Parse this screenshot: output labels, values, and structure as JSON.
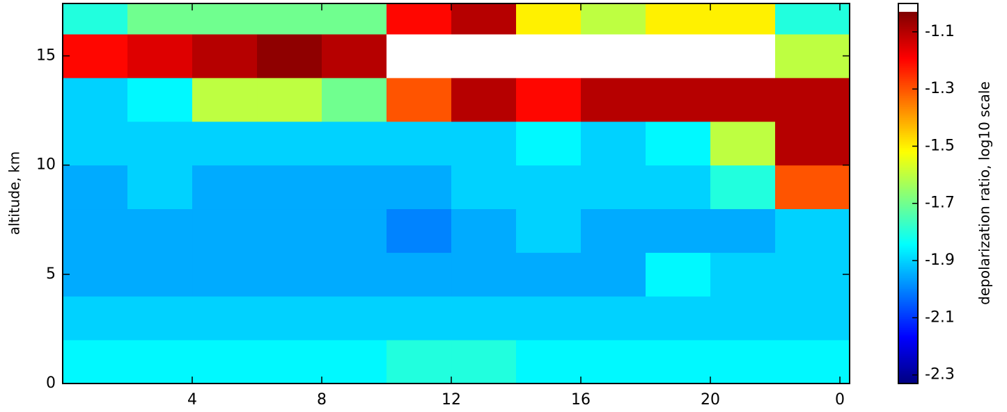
{
  "chart_data": {
    "type": "heatmap",
    "y_label": "altitude, km",
    "colorbar_label": "depolarization ratio, log10 scale",
    "x_edges": [
      0,
      2,
      4,
      6,
      8,
      10,
      12,
      14,
      16,
      18,
      20,
      22,
      24.3
    ],
    "y_edges": [
      0,
      2,
      4,
      6,
      8,
      10,
      12,
      14,
      16,
      17.4
    ],
    "values": [
      [
        -1.85,
        -1.9,
        -1.95,
        -1.95,
        -1.95,
        -1.9,
        -1.9,
        -1.2,
        -1.8
      ],
      [
        -1.85,
        -1.9,
        -1.95,
        -1.95,
        -1.9,
        -1.9,
        -1.85,
        -1.15,
        -1.7
      ],
      [
        -1.85,
        -1.9,
        -1.95,
        -1.95,
        -1.95,
        -1.9,
        -1.6,
        -1.1,
        -1.7
      ],
      [
        -1.85,
        -1.9,
        -1.95,
        -1.95,
        -1.95,
        -1.9,
        -1.6,
        -1.05,
        -1.7
      ],
      [
        -1.85,
        -1.9,
        -1.95,
        -1.95,
        -1.95,
        -1.9,
        -1.7,
        -1.1,
        -1.7
      ],
      [
        -1.8,
        -1.9,
        -1.95,
        -2.0,
        -1.95,
        -1.9,
        -1.3,
        -1.0,
        -1.2
      ],
      [
        -1.8,
        -1.9,
        -1.95,
        -1.95,
        -1.9,
        -1.9,
        -1.1,
        -1.0,
        -1.1
      ],
      [
        -1.85,
        -1.9,
        -1.95,
        -1.9,
        -1.9,
        -1.85,
        -1.2,
        -1.0,
        -1.5
      ],
      [
        -1.85,
        -1.9,
        -1.95,
        -1.95,
        -1.9,
        -1.9,
        -1.1,
        -1.0,
        -1.6
      ],
      [
        -1.85,
        -1.9,
        -1.85,
        -1.95,
        -1.9,
        -1.85,
        -1.1,
        -1.0,
        -1.5
      ],
      [
        -1.85,
        -1.9,
        -1.9,
        -1.95,
        -1.8,
        -1.6,
        -1.1,
        -1.0,
        -1.5
      ],
      [
        -1.85,
        -1.9,
        -1.9,
        -1.9,
        -1.3,
        -1.1,
        -1.1,
        -1.6,
        -1.8
      ]
    ],
    "colormap": "jet",
    "over_color": "#ffffff",
    "clim": [
      -2.33,
      -1.03
    ],
    "cticks": [
      -2.3,
      -2.1,
      -1.9,
      -1.7,
      -1.5,
      -1.3,
      -1.1
    ],
    "xlim": [
      0,
      24.3
    ],
    "xticks": [
      4,
      8,
      12,
      16,
      20,
      {
        "value": 24,
        "label": "0"
      }
    ],
    "ylim": [
      0,
      17.4
    ],
    "yticks": [
      0,
      5,
      10,
      15
    ]
  }
}
